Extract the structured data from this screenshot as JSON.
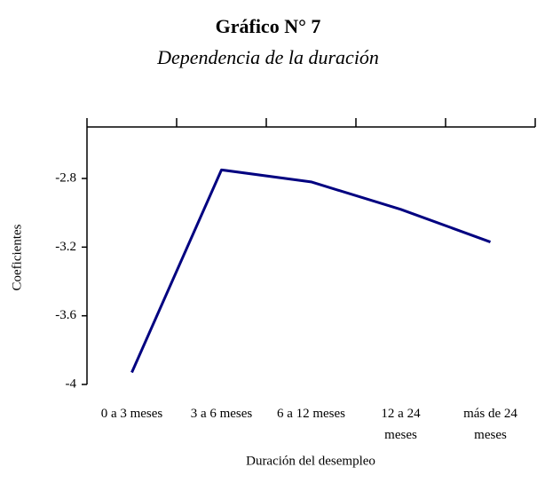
{
  "chart_data": {
    "type": "line",
    "title": "Gráfico N° 7",
    "subtitle": "Dependencia de la duración",
    "x_label": "Duración del desempleo",
    "y_label": "Coeficientes",
    "categories": [
      "0 a 3 meses",
      "3 a 6 meses",
      "6 a 12 meses",
      "12 a 24 meses",
      "más de 24 meses"
    ],
    "values": [
      -3.93,
      -2.75,
      -2.82,
      -2.98,
      -3.17
    ],
    "color": "#000080",
    "ylim": [
      -4,
      -2.5
    ],
    "yticks": [
      -2.8,
      -3.2,
      -3.6,
      -4
    ]
  }
}
